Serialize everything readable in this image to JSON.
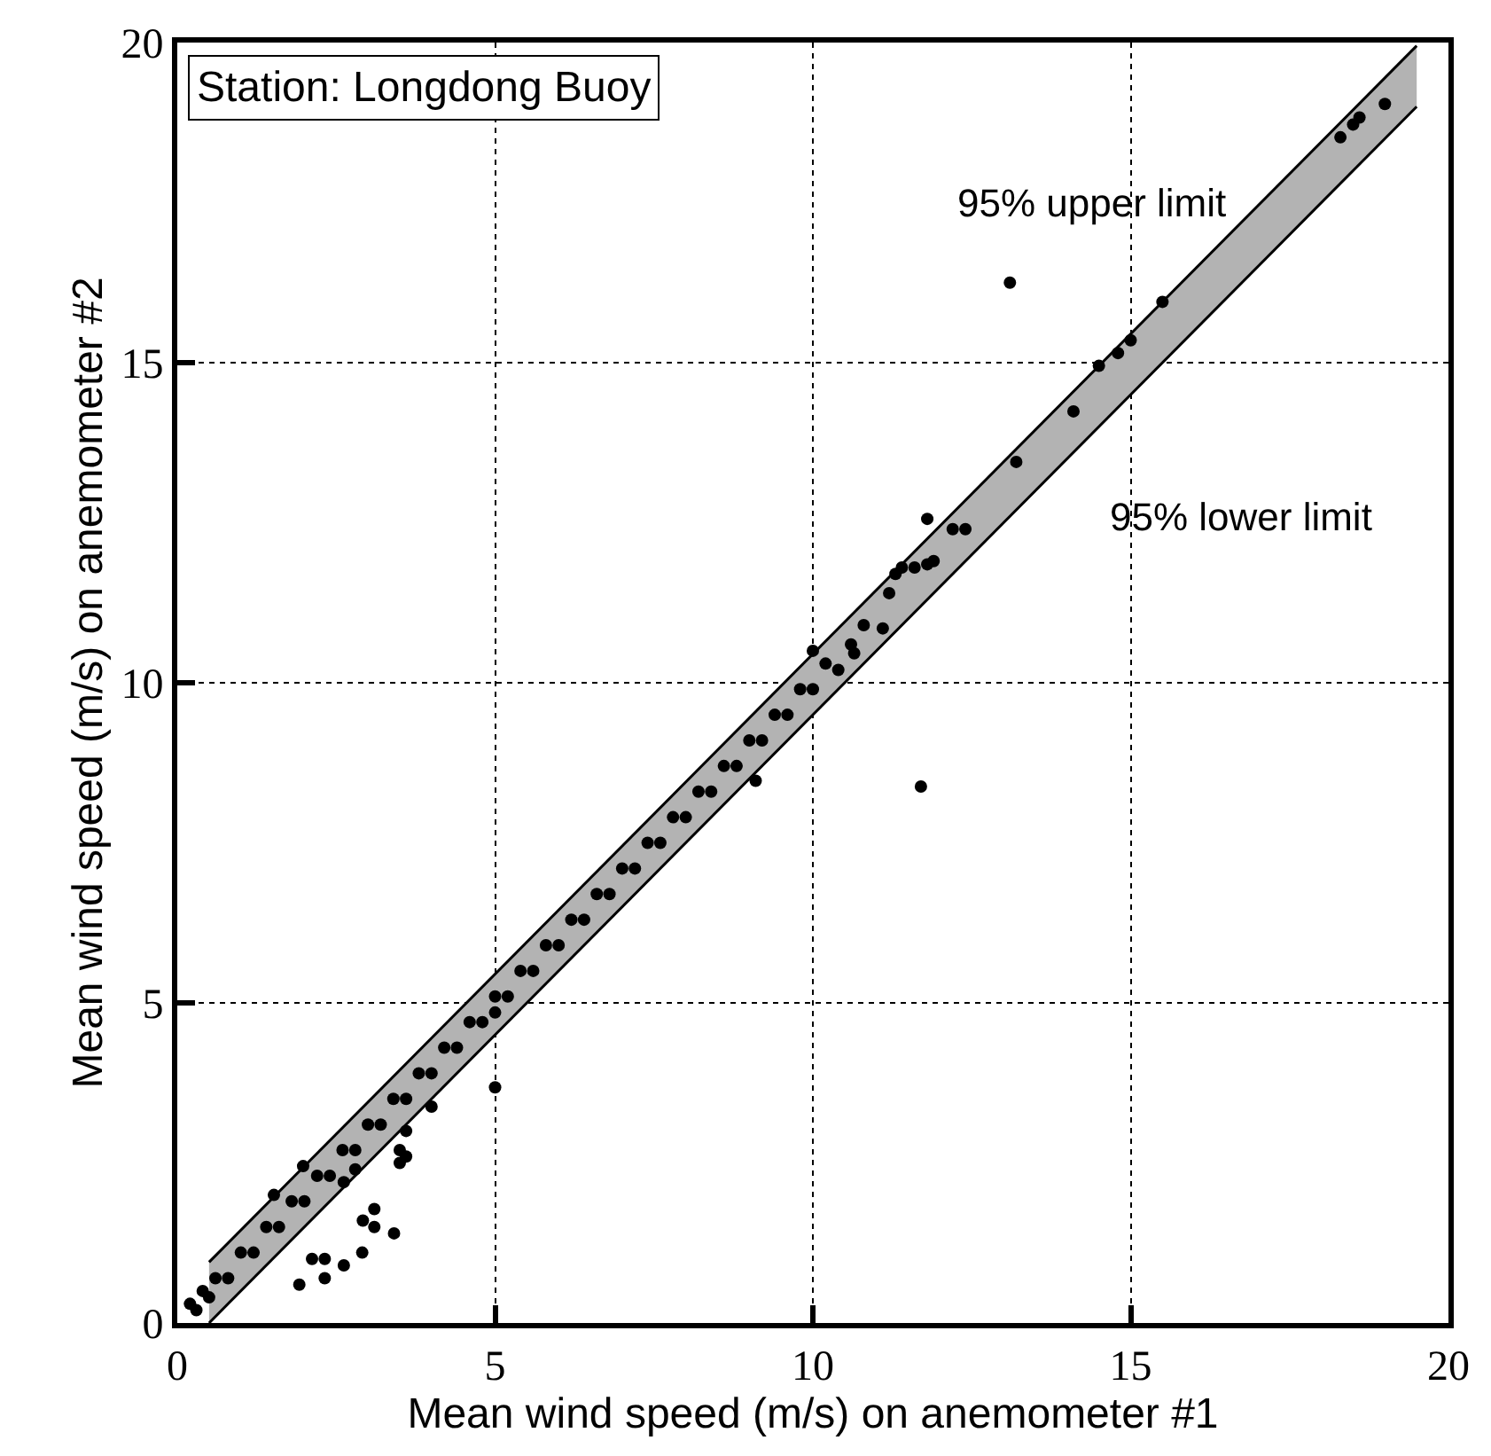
{
  "chart_data": {
    "type": "scatter",
    "xlabel": "Mean wind speed (m/s) on anemometer #1",
    "ylabel": "Mean wind speed (m/s) on anemometer #2",
    "xlim": [
      0,
      20
    ],
    "ylim": [
      0,
      20
    ],
    "xticks": [
      0,
      5,
      10,
      15,
      20
    ],
    "yticks": [
      0,
      5,
      10,
      15,
      20
    ],
    "grid": true,
    "marker": "circle",
    "annotations": [
      "Station: Longdong Buoy",
      "95% upper limit",
      "95% lower limit"
    ],
    "series": [
      {
        "type": "line",
        "color": "#b3b3b3",
        "x": [
          0.5,
          19.5
        ],
        "values": [
          null,
          null
        ],
        "lower": [
          0,
          19.0
        ],
        "upper": [
          0.95,
          19.95
        ]
      },
      {
        "type": "line",
        "color": "#000000",
        "marker": "none",
        "x": [
          0.5,
          19.5
        ],
        "values": [
          0,
          19.0
        ]
      },
      {
        "type": "line",
        "color": "#000000",
        "marker": "none",
        "x": [
          0.5,
          19.5
        ],
        "values": [
          0.95,
          19.95
        ]
      },
      {
        "color": "#000000",
        "x": [
          0.2,
          0.3,
          0.4,
          0.5,
          0.6,
          0.8,
          1.0,
          1.2,
          1.4,
          1.6,
          1.8,
          2.0,
          2.2,
          2.4,
          2.6,
          2.8,
          3.0,
          3.2,
          3.4,
          3.6,
          3.8,
          4.0,
          4.2,
          4.4,
          4.6,
          4.8,
          5.0,
          5.2,
          5.4,
          5.6,
          5.8,
          6.0,
          6.2,
          6.4,
          6.6,
          6.8,
          7.0,
          7.2,
          7.4,
          7.6,
          7.8,
          8.0,
          8.2,
          8.4,
          8.6,
          8.8,
          9.0,
          9.2,
          9.4,
          9.6,
          9.8,
          10.0,
          10.2,
          10.4,
          10.6,
          10.8,
          5.0,
          11.1,
          10.65,
          10.0,
          11.2,
          11.3,
          11.4,
          11.6,
          11.8,
          11.9,
          12.2,
          12.4,
          11.8,
          13.2,
          14.1,
          14.5,
          14.8,
          15.0,
          15.5,
          18.3,
          18.5,
          18.6,
          19.0,
          13.1,
          11.7,
          9.1,
          5.0,
          4.0,
          3.6,
          3.5,
          3.6,
          3.5,
          3.1,
          2.92,
          3.1,
          3.41,
          2.91,
          2.62,
          2.12,
          2.32,
          2.32,
          1.92,
          2.8,
          2.62,
          1.52,
          1.98
        ],
        "values": [
          0.3,
          0.2,
          0.5,
          0.4,
          0.7,
          0.7,
          1.1,
          1.1,
          1.5,
          1.5,
          1.9,
          1.9,
          2.3,
          2.3,
          2.7,
          2.7,
          3.1,
          3.1,
          3.5,
          3.5,
          3.9,
          3.9,
          4.3,
          4.3,
          4.7,
          4.7,
          5.1,
          5.1,
          5.5,
          5.5,
          5.9,
          5.9,
          6.3,
          6.3,
          6.7,
          6.7,
          7.1,
          7.1,
          7.5,
          7.5,
          7.9,
          7.9,
          8.3,
          8.3,
          8.7,
          8.7,
          9.1,
          9.1,
          9.5,
          9.5,
          9.9,
          9.9,
          10.3,
          10.2,
          10.6,
          10.9,
          4.85,
          10.85,
          10.46,
          10.5,
          11.4,
          11.7,
          11.8,
          11.8,
          11.85,
          11.9,
          12.4,
          12.4,
          12.56,
          13.45,
          14.24,
          14.95,
          15.15,
          15.35,
          15.95,
          18.52,
          18.72,
          18.83,
          19.04,
          16.25,
          8.38,
          8.47,
          3.68,
          3.38,
          3.0,
          2.7,
          2.6,
          2.5,
          1.78,
          1.6,
          1.5,
          1.4,
          1.1,
          0.9,
          1.0,
          1.0,
          0.7,
          0.6,
          2.4,
          2.2,
          2.0,
          2.45
        ]
      }
    ]
  }
}
